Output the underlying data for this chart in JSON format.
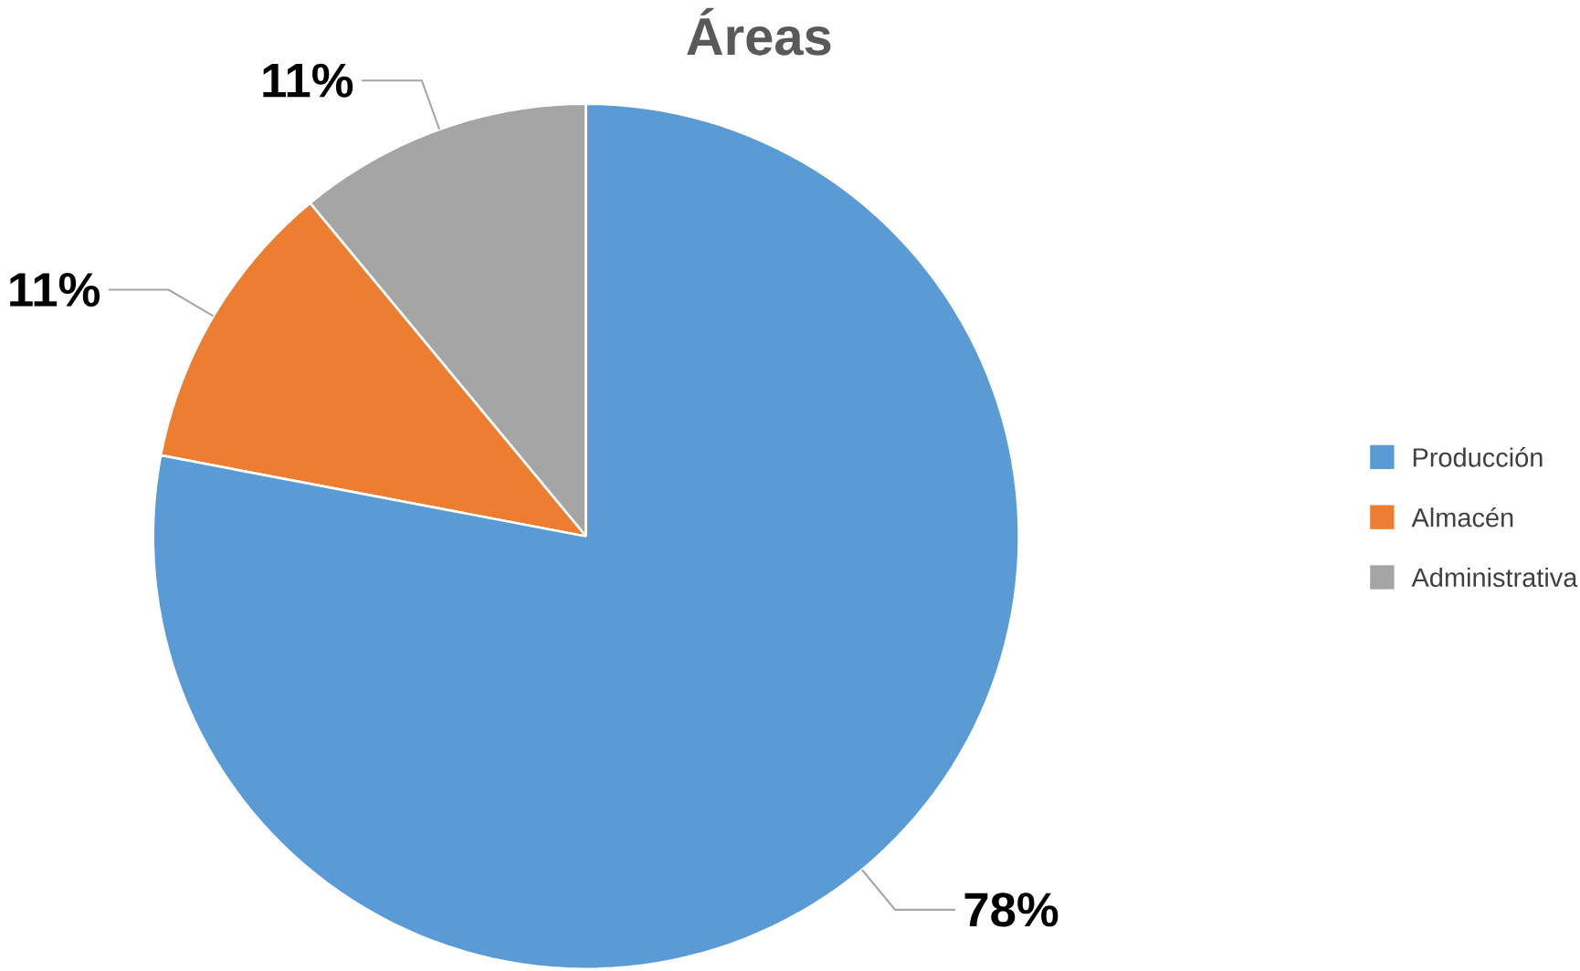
{
  "chart_data": {
    "type": "pie",
    "title": "Áreas",
    "categories": [
      "Producción",
      "Almacén",
      "Administrativa"
    ],
    "values": [
      78,
      11,
      11
    ],
    "value_labels": [
      "78%",
      "11%",
      "11%"
    ],
    "colors": [
      "#5b9bd5",
      "#ed7d31",
      "#a5a5a5"
    ],
    "legend": "right"
  }
}
